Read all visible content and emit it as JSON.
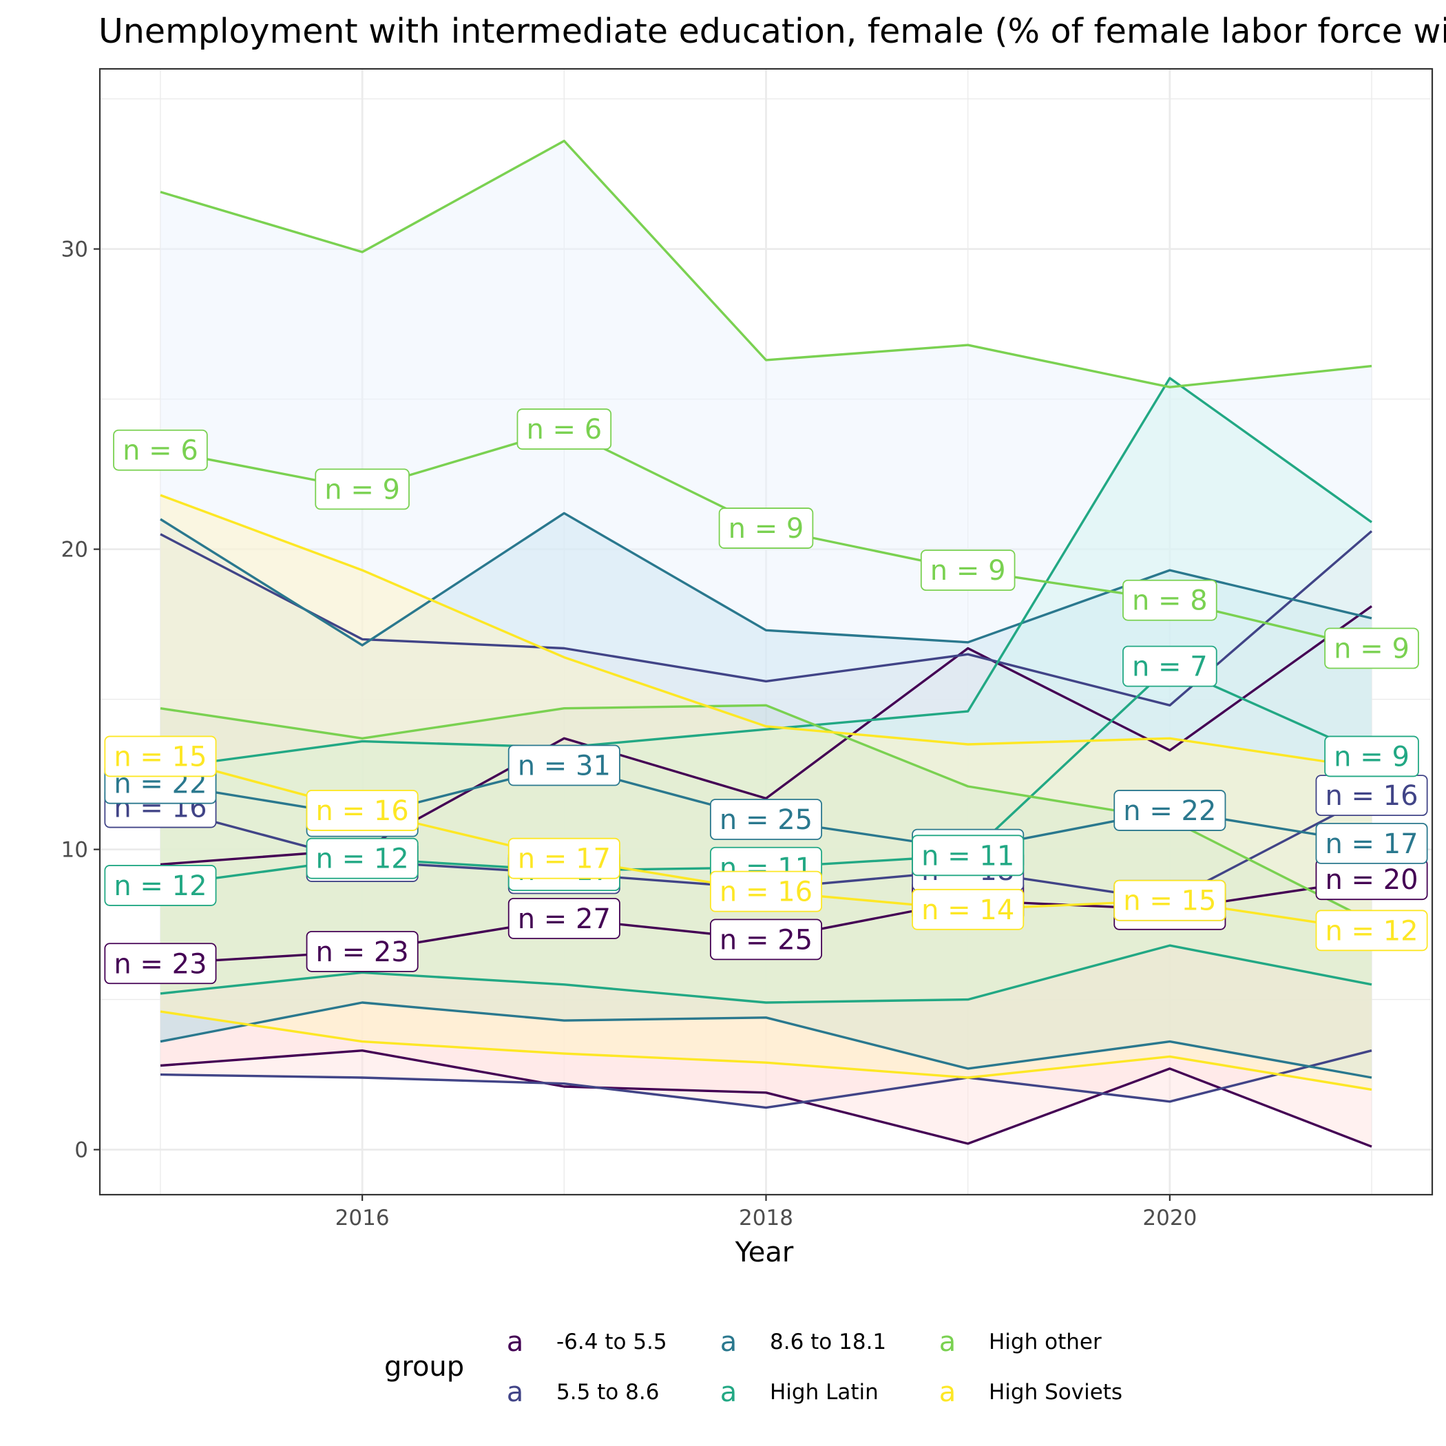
{
  "chart_data": {
    "type": "area",
    "title": "Unemployment with intermediate education, female (% of female labor force with intermediate education)",
    "xlabel": "Year",
    "ylabel": "",
    "xlim": [
      2014.7,
      2021.3
    ],
    "ylim": [
      -1.5,
      36.0
    ],
    "x_ticks": [
      2016,
      2018,
      2020
    ],
    "y_ticks": [
      0,
      10,
      20,
      30
    ],
    "grid": true,
    "legend": {
      "title": "group",
      "position": "bottom",
      "key_glyph": "a"
    },
    "x": [
      2015,
      2016,
      2017,
      2018,
      2019,
      2020,
      2021
    ],
    "series": [
      {
        "name": "-6.4 to 5.5",
        "color": "#440154",
        "fill": "#FFE4E1",
        "mean": [
          6.2,
          6.6,
          7.7,
          7.0,
          8.3,
          8.0,
          9.0
        ],
        "low": [
          2.8,
          3.3,
          2.1,
          1.9,
          0.2,
          2.7,
          0.1
        ],
        "high": [
          9.5,
          10.0,
          13.7,
          11.7,
          16.7,
          13.3,
          18.1
        ],
        "n": [
          23,
          23,
          27,
          25,
          25,
          22,
          20
        ]
      },
      {
        "name": "5.5 to 8.6",
        "color": "#414487",
        "fill": "#FFE4E1",
        "mean": [
          11.4,
          9.6,
          9.2,
          8.7,
          9.3,
          8.3,
          11.8
        ],
        "low": [
          2.5,
          2.4,
          2.2,
          1.4,
          2.4,
          1.6,
          3.3
        ],
        "high": [
          20.5,
          17.0,
          16.7,
          15.6,
          16.5,
          14.8,
          20.6
        ],
        "n": [
          16,
          25,
          17,
          16,
          18,
          15,
          16
        ]
      },
      {
        "name": "8.6 to 18.1",
        "color": "#2A788E",
        "fill": "#ADD8E6",
        "mean": [
          12.2,
          11.1,
          12.8,
          11.0,
          10.0,
          11.3,
          10.2
        ],
        "low": [
          3.6,
          4.9,
          4.3,
          4.4,
          2.7,
          3.6,
          2.4
        ],
        "high": [
          21.0,
          16.8,
          21.2,
          17.3,
          16.9,
          19.3,
          17.7
        ],
        "n": [
          22,
          25,
          31,
          25,
          18,
          22,
          17
        ]
      },
      {
        "name": "High Latin",
        "color": "#22A884",
        "fill": "#B9F2E4",
        "mean": [
          8.8,
          9.7,
          9.3,
          9.4,
          9.8,
          16.1,
          13.1
        ],
        "low": [
          5.2,
          5.9,
          5.5,
          4.9,
          5.0,
          6.8,
          5.5
        ],
        "high": [
          12.7,
          13.6,
          13.4,
          14.0,
          14.6,
          25.7,
          20.9
        ],
        "n": [
          12,
          12,
          17,
          11,
          11,
          7,
          9
        ]
      },
      {
        "name": "High other",
        "color": "#7AD151",
        "fill": "#ECF4FE",
        "mean": [
          23.3,
          22.0,
          24.0,
          20.7,
          19.3,
          18.3,
          16.7
        ],
        "low": [
          14.7,
          13.7,
          14.7,
          14.8,
          12.1,
          11.0,
          7.6
        ],
        "high": [
          31.9,
          29.9,
          33.6,
          26.3,
          26.8,
          25.4,
          26.1
        ],
        "n": [
          6,
          9,
          6,
          9,
          9,
          8,
          9
        ]
      },
      {
        "name": "High Soviets",
        "color": "#FDE725",
        "fill": "#FFF3C4",
        "mean": [
          13.1,
          11.3,
          9.7,
          8.6,
          8.0,
          8.3,
          7.3
        ],
        "low": [
          4.6,
          3.6,
          3.2,
          2.9,
          2.4,
          3.1,
          2.0
        ],
        "high": [
          21.8,
          19.3,
          16.4,
          14.1,
          13.5,
          13.7,
          12.7
        ],
        "n": [
          15,
          16,
          17,
          16,
          14,
          15,
          12
        ]
      }
    ]
  }
}
